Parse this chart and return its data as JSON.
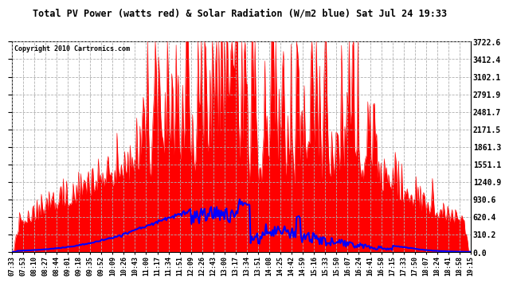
{
  "title": "Total PV Power (watts red) & Solar Radiation (W/m2 blue) Sat Jul 24 19:33",
  "copyright": "Copyright 2010 Cartronics.com",
  "ymax": 3722.6,
  "yticks": [
    0.0,
    310.2,
    620.4,
    930.6,
    1240.9,
    1551.1,
    1861.3,
    2171.5,
    2481.7,
    2791.9,
    3102.1,
    3412.4,
    3722.6
  ],
  "background_color": "#ffffff",
  "plot_bg_color": "#ffffff",
  "grid_color": "#b0b0b0",
  "red_color": "#ff0000",
  "blue_color": "#0000ff",
  "title_color": "#000000",
  "x_labels": [
    "07:33",
    "07:53",
    "08:10",
    "08:27",
    "08:44",
    "09:01",
    "09:18",
    "09:35",
    "09:52",
    "10:09",
    "10:26",
    "10:43",
    "11:00",
    "11:17",
    "11:34",
    "11:51",
    "12:09",
    "12:26",
    "12:43",
    "13:00",
    "13:17",
    "13:34",
    "13:51",
    "14:08",
    "14:25",
    "14:42",
    "14:59",
    "15:16",
    "15:33",
    "15:50",
    "16:07",
    "16:24",
    "16:41",
    "16:58",
    "17:15",
    "17:33",
    "17:50",
    "18:07",
    "18:24",
    "18:41",
    "18:58",
    "19:15"
  ]
}
